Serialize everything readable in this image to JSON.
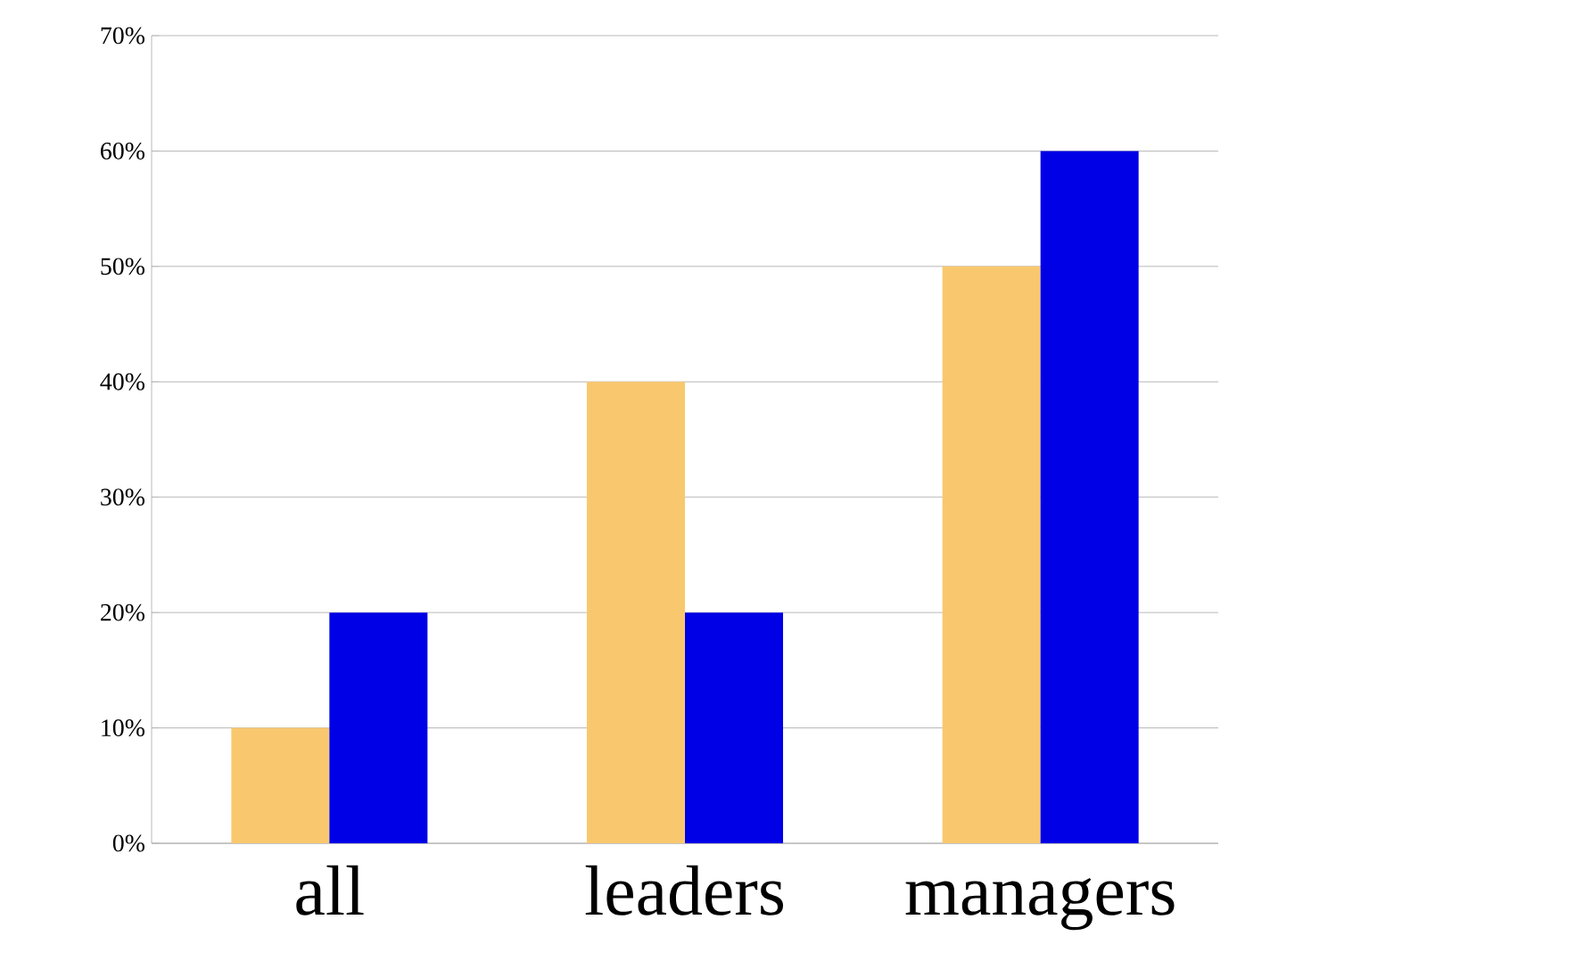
{
  "chart_data": {
    "type": "bar",
    "categories": [
      "all",
      "leaders",
      "managers"
    ],
    "series": [
      {
        "color": "#f9c86e",
        "values": [
          10,
          40,
          50
        ]
      },
      {
        "color": "#0000e6",
        "values": [
          20,
          20,
          60
        ]
      }
    ],
    "ylim": [
      0,
      70
    ],
    "yticks": [
      {
        "value": 0,
        "label": "0%"
      },
      {
        "value": 10,
        "label": "10%"
      },
      {
        "value": 20,
        "label": "20%"
      },
      {
        "value": 30,
        "label": "30%"
      },
      {
        "value": 40,
        "label": "40%"
      },
      {
        "value": 50,
        "label": "50%"
      },
      {
        "value": 60,
        "label": "60%"
      },
      {
        "value": 70,
        "label": "70%"
      }
    ],
    "grid": "y"
  }
}
